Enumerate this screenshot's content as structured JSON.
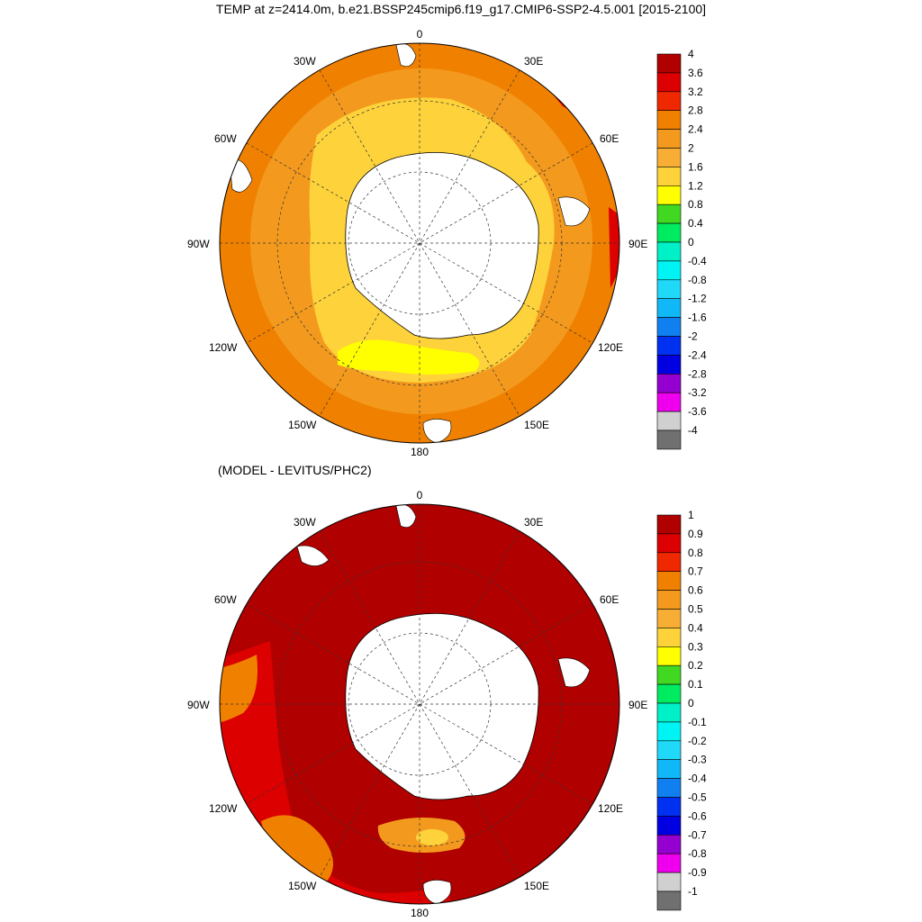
{
  "title": "TEMP at z=2414.0m, b.e21.BSSP245cmip6.f19_g17.CMIP6-SSP2-4.5.001 [2015-2100]",
  "subtitle": "(MODEL - LEVITUS/PHC2)",
  "longitude_labels": [
    "0",
    "30E",
    "60E",
    "90E",
    "120E",
    "150E",
    "180",
    "150W",
    "120W",
    "90W",
    "60W",
    "30W"
  ],
  "top_colorbar": {
    "labels": [
      "4",
      "3.6",
      "3.2",
      "2.8",
      "2.4",
      "2",
      "1.6",
      "1.2",
      "0.8",
      "0.4",
      "0",
      "-0.4",
      "-0.8",
      "-1.2",
      "-1.6",
      "-2",
      "-2.4",
      "-2.8",
      "-3.2",
      "-3.6",
      "-4"
    ]
  },
  "bottom_colorbar": {
    "labels": [
      "1",
      "0.9",
      "0.8",
      "0.7",
      "0.6",
      "0.5",
      "0.4",
      "0.3",
      "0.2",
      "0.1",
      "0",
      "-0.1",
      "-0.2",
      "-0.3",
      "-0.4",
      "-0.5",
      "-0.6",
      "-0.7",
      "-0.8",
      "-0.9",
      "-1"
    ]
  },
  "colors": {
    "palette": [
      "#b00000",
      "#dc0000",
      "#f02800",
      "#f08000",
      "#f39a1e",
      "#f8ae35",
      "#fdd23a",
      "#ffff00",
      "#40d820",
      "#00ec60",
      "#00f0c8",
      "#00f4f4",
      "#20d8f8",
      "#10b8f8",
      "#1080f0",
      "#0030f0",
      "#0000e0",
      "#9400d0",
      "#ee00ee",
      "#d0d0d0",
      "#707070"
    ],
    "land": "#ffffff",
    "top_outer_ocean": "#f08000",
    "top_mid_ocean": "#f39a1e",
    "top_inner_ocean": "#fdd23a",
    "top_warm_core": "#ffff00",
    "bottom_ocean": "#b00000",
    "bottom_orange": "#f08000",
    "bottom_red": "#dc0000"
  }
}
